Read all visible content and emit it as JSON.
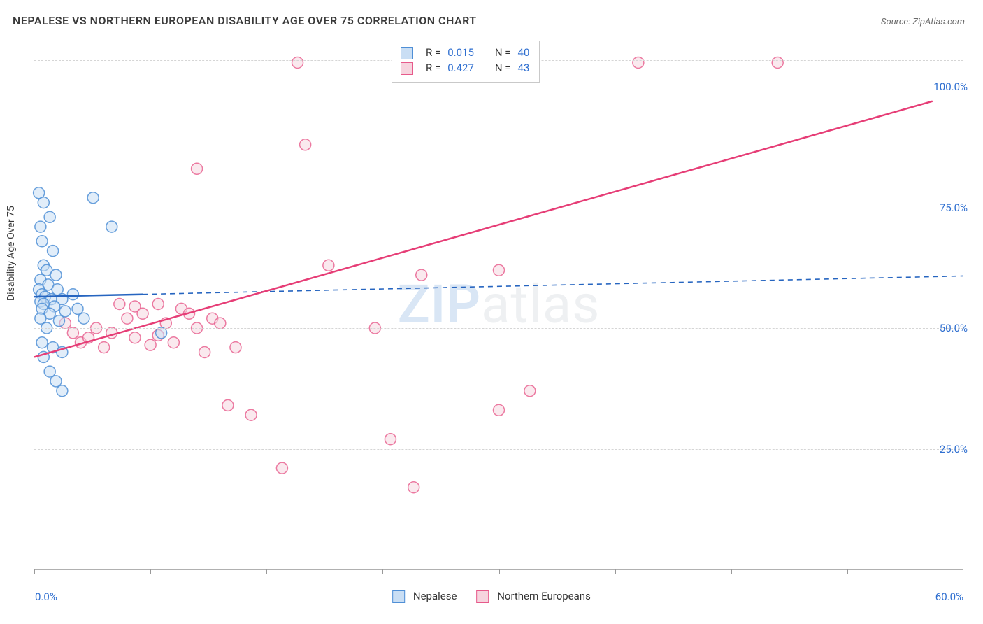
{
  "title": "NEPALESE VS NORTHERN EUROPEAN DISABILITY AGE OVER 75 CORRELATION CHART",
  "source": "Source: ZipAtlas.com",
  "ylabel": "Disability Age Over 75",
  "watermark": {
    "prefix": "ZIP",
    "suffix": "atlas"
  },
  "chart": {
    "type": "scatter",
    "background_color": "#ffffff",
    "grid_color": "#d5d5d5",
    "axis_color": "#b0b0b0",
    "label_color": "#3a3a3a",
    "value_color": "#2f6fd0",
    "title_fontsize": 16,
    "label_fontsize": 14,
    "tick_fontsize": 15,
    "xlim": [
      0,
      60
    ],
    "ylim": [
      0,
      110
    ],
    "xtick_labels": {
      "start": "0.0%",
      "end": "60.0%"
    },
    "xtick_positions": [
      0,
      7.5,
      15,
      22.5,
      30,
      37.5,
      45,
      52.5
    ],
    "yticks": [
      {
        "v": 25,
        "label": "25.0%"
      },
      {
        "v": 50,
        "label": "50.0%"
      },
      {
        "v": 75,
        "label": "75.0%"
      },
      {
        "v": 100,
        "label": "100.0%"
      }
    ],
    "marker_radius": 8,
    "marker_stroke_width": 1.5,
    "trend_line_width": 2.5,
    "dash_pattern": "7 6"
  },
  "series": {
    "nepalese": {
      "label": "Nepalese",
      "fill": "#c9def4",
      "stroke": "#4f8fd6",
      "stroke_opacity": 0.85,
      "fill_opacity": 0.55,
      "r": 0.015,
      "n": 40,
      "trend": {
        "x1": 0,
        "y1": 56.5,
        "xs": 7,
        "ys": 57.0,
        "x2": 60,
        "y2": 60.8,
        "color": "#2665c0"
      },
      "points": [
        [
          0.3,
          78
        ],
        [
          0.6,
          76
        ],
        [
          1.0,
          73
        ],
        [
          3.8,
          77
        ],
        [
          0.4,
          71
        ],
        [
          5.0,
          71
        ],
        [
          0.5,
          68
        ],
        [
          1.2,
          66
        ],
        [
          0.6,
          63
        ],
        [
          0.8,
          62
        ],
        [
          1.4,
          61
        ],
        [
          0.4,
          60
        ],
        [
          0.9,
          59
        ],
        [
          0.3,
          58
        ],
        [
          1.5,
          58
        ],
        [
          0.5,
          57
        ],
        [
          0.7,
          56.5
        ],
        [
          1.1,
          56
        ],
        [
          0.4,
          55.5
        ],
        [
          1.8,
          56
        ],
        [
          2.5,
          57
        ],
        [
          0.6,
          55
        ],
        [
          1.3,
          54.5
        ],
        [
          0.5,
          54
        ],
        [
          1.0,
          53
        ],
        [
          2.0,
          53.5
        ],
        [
          2.8,
          54
        ],
        [
          0.4,
          52
        ],
        [
          1.6,
          51.5
        ],
        [
          3.2,
          52
        ],
        [
          0.8,
          50
        ],
        [
          8.2,
          49
        ],
        [
          0.5,
          47
        ],
        [
          1.2,
          46
        ],
        [
          1.8,
          45
        ],
        [
          0.6,
          44
        ],
        [
          1.0,
          41
        ],
        [
          1.4,
          39
        ],
        [
          1.8,
          37
        ]
      ]
    },
    "northern": {
      "label": "Northern Europeans",
      "fill": "#f6d4de",
      "stroke": "#e75a8b",
      "stroke_opacity": 0.8,
      "fill_opacity": 0.5,
      "r": 0.427,
      "n": 43,
      "trend": {
        "x1": 0,
        "y1": 44,
        "x2": 58,
        "y2": 97,
        "color": "#e63d76"
      },
      "points": [
        [
          17,
          105
        ],
        [
          24,
          105
        ],
        [
          39,
          105
        ],
        [
          48,
          105
        ],
        [
          17.5,
          88
        ],
        [
          10.5,
          83
        ],
        [
          19,
          63
        ],
        [
          25,
          61
        ],
        [
          30,
          62
        ],
        [
          5.5,
          55
        ],
        [
          6.5,
          54.5
        ],
        [
          8,
          55
        ],
        [
          9.5,
          54
        ],
        [
          7,
          53
        ],
        [
          6,
          52
        ],
        [
          10,
          53
        ],
        [
          11.5,
          52
        ],
        [
          8.5,
          51
        ],
        [
          10.5,
          50
        ],
        [
          12,
          51
        ],
        [
          4,
          50
        ],
        [
          5,
          49
        ],
        [
          6.5,
          48
        ],
        [
          8,
          48.5
        ],
        [
          9,
          47
        ],
        [
          7.5,
          46.5
        ],
        [
          3,
          47
        ],
        [
          4.5,
          46
        ],
        [
          11,
          45
        ],
        [
          13,
          46
        ],
        [
          2,
          51
        ],
        [
          2.5,
          49
        ],
        [
          3.5,
          48
        ],
        [
          22,
          50
        ],
        [
          32,
          37
        ],
        [
          30,
          33
        ],
        [
          12.5,
          34
        ],
        [
          14,
          32
        ],
        [
          23,
          27
        ],
        [
          16,
          21
        ],
        [
          24.5,
          17
        ]
      ]
    }
  },
  "stats_box": {
    "rows": [
      {
        "swatch": "nepalese",
        "r_label": "R =",
        "r_val": "0.015",
        "n_label": "N =",
        "n_val": "40"
      },
      {
        "swatch": "northern",
        "r_label": "R =",
        "r_val": "0.427",
        "n_label": "N =",
        "n_val": "43"
      }
    ]
  }
}
